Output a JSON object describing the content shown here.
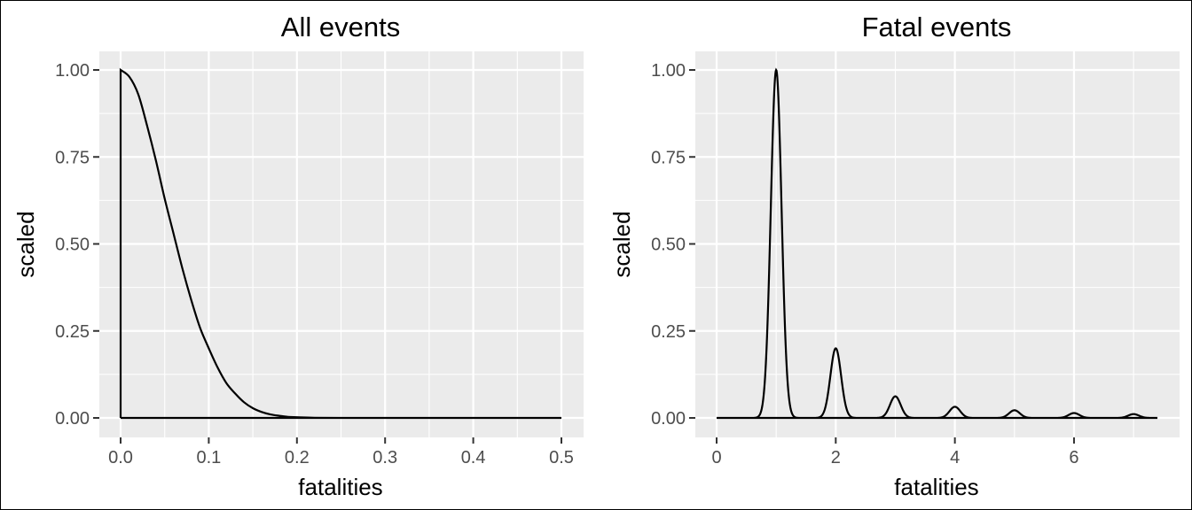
{
  "chart_data": [
    {
      "type": "line",
      "title": "All events",
      "xlabel": "fatalities",
      "ylabel": "scaled",
      "xlim": [
        0,
        0.5
      ],
      "ylim": [
        0,
        1
      ],
      "x_ticks": [
        0.0,
        0.1,
        0.2,
        0.3,
        0.4,
        0.5
      ],
      "x_tick_labels": [
        "0.0",
        "0.1",
        "0.2",
        "0.3",
        "0.4",
        "0.5"
      ],
      "y_ticks": [
        0,
        0.25,
        0.5,
        0.75,
        1.0
      ],
      "y_tick_labels": [
        "0.00",
        "0.25",
        "0.50",
        "0.75",
        "1.00"
      ],
      "grid": true,
      "series": [
        {
          "x": [
            0,
            0.01,
            0.02,
            0.03,
            0.04,
            0.05,
            0.06,
            0.07,
            0.08,
            0.09,
            0.1,
            0.11,
            0.12,
            0.13,
            0.14,
            0.15,
            0.16,
            0.17,
            0.18,
            0.19,
            0.2,
            0.22,
            0.25,
            0.3,
            0.4,
            0.5
          ],
          "y": [
            1.0,
            0.98,
            0.93,
            0.84,
            0.74,
            0.63,
            0.53,
            0.43,
            0.34,
            0.26,
            0.2,
            0.145,
            0.1,
            0.07,
            0.045,
            0.028,
            0.017,
            0.01,
            0.006,
            0.003,
            0.002,
            0.0005,
            0,
            0,
            0,
            0
          ]
        }
      ]
    },
    {
      "type": "line",
      "title": "Fatal events",
      "xlabel": "fatalities",
      "ylabel": "scaled",
      "xlim": [
        0,
        7.4
      ],
      "ylim": [
        0,
        1
      ],
      "x_ticks": [
        0,
        2,
        4,
        6
      ],
      "x_tick_labels": [
        "0",
        "2",
        "4",
        "6"
      ],
      "y_ticks": [
        0,
        0.25,
        0.5,
        0.75,
        1.0
      ],
      "y_tick_labels": [
        "0.00",
        "0.25",
        "0.50",
        "0.75",
        "1.00"
      ],
      "grid": true,
      "peak_centers": [
        1,
        2,
        3,
        4,
        5,
        6,
        7
      ],
      "peak_heights": [
        1.0,
        0.2,
        0.062,
        0.032,
        0.022,
        0.014,
        0.011
      ],
      "peak_width": 0.09
    }
  ]
}
